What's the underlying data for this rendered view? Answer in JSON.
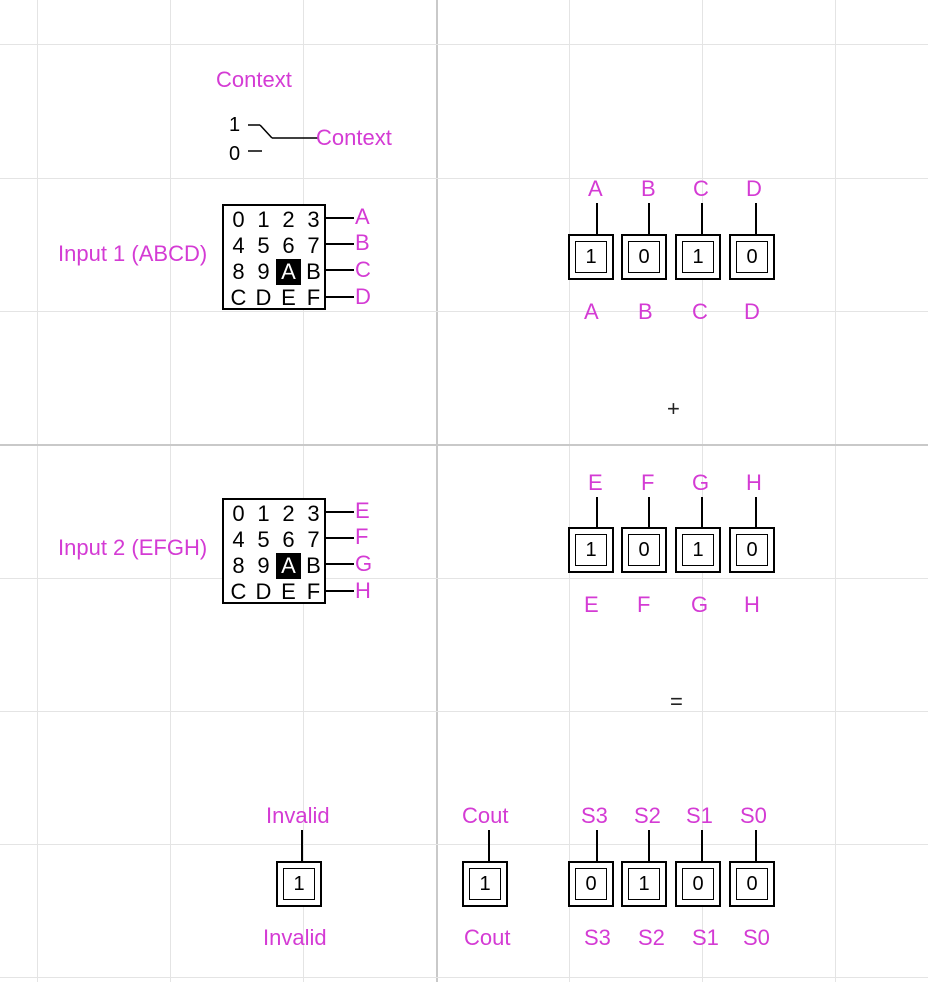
{
  "context_switch": {
    "title": "Context",
    "output_label": "Context",
    "options": [
      "1",
      "0"
    ],
    "selected": "1"
  },
  "keypad_1": {
    "label": "Input 1 (ABCD)",
    "keys": [
      "0",
      "1",
      "2",
      "3",
      "4",
      "5",
      "6",
      "7",
      "8",
      "9",
      "A",
      "B",
      "C",
      "D",
      "E",
      "F"
    ],
    "selected": "A",
    "outputs": [
      "A",
      "B",
      "C",
      "D"
    ]
  },
  "keypad_2": {
    "label": "Input 2 (EFGH)",
    "keys": [
      "0",
      "1",
      "2",
      "3",
      "4",
      "5",
      "6",
      "7",
      "8",
      "9",
      "A",
      "B",
      "C",
      "D",
      "E",
      "F"
    ],
    "selected": "A",
    "outputs": [
      "E",
      "F",
      "G",
      "H"
    ]
  },
  "display_1": {
    "top_labels": [
      "A",
      "B",
      "C",
      "D"
    ],
    "values": [
      "1",
      "0",
      "1",
      "0"
    ],
    "bottom_labels": [
      "A",
      "B",
      "C",
      "D"
    ]
  },
  "plus_sign": "+",
  "display_2": {
    "top_labels": [
      "E",
      "F",
      "G",
      "H"
    ],
    "values": [
      "1",
      "0",
      "1",
      "0"
    ],
    "bottom_labels": [
      "E",
      "F",
      "G",
      "H"
    ]
  },
  "equals_sign": "=",
  "invalid": {
    "top_label": "Invalid",
    "value": "1",
    "bottom_label": "Invalid"
  },
  "cout": {
    "top_label": "Cout",
    "value": "1",
    "bottom_label": "Cout"
  },
  "sum": {
    "top_labels": [
      "S3",
      "S2",
      "S1",
      "S0"
    ],
    "values": [
      "0",
      "1",
      "0",
      "0"
    ],
    "bottom_labels": [
      "S3",
      "S2",
      "S1",
      "S0"
    ]
  }
}
